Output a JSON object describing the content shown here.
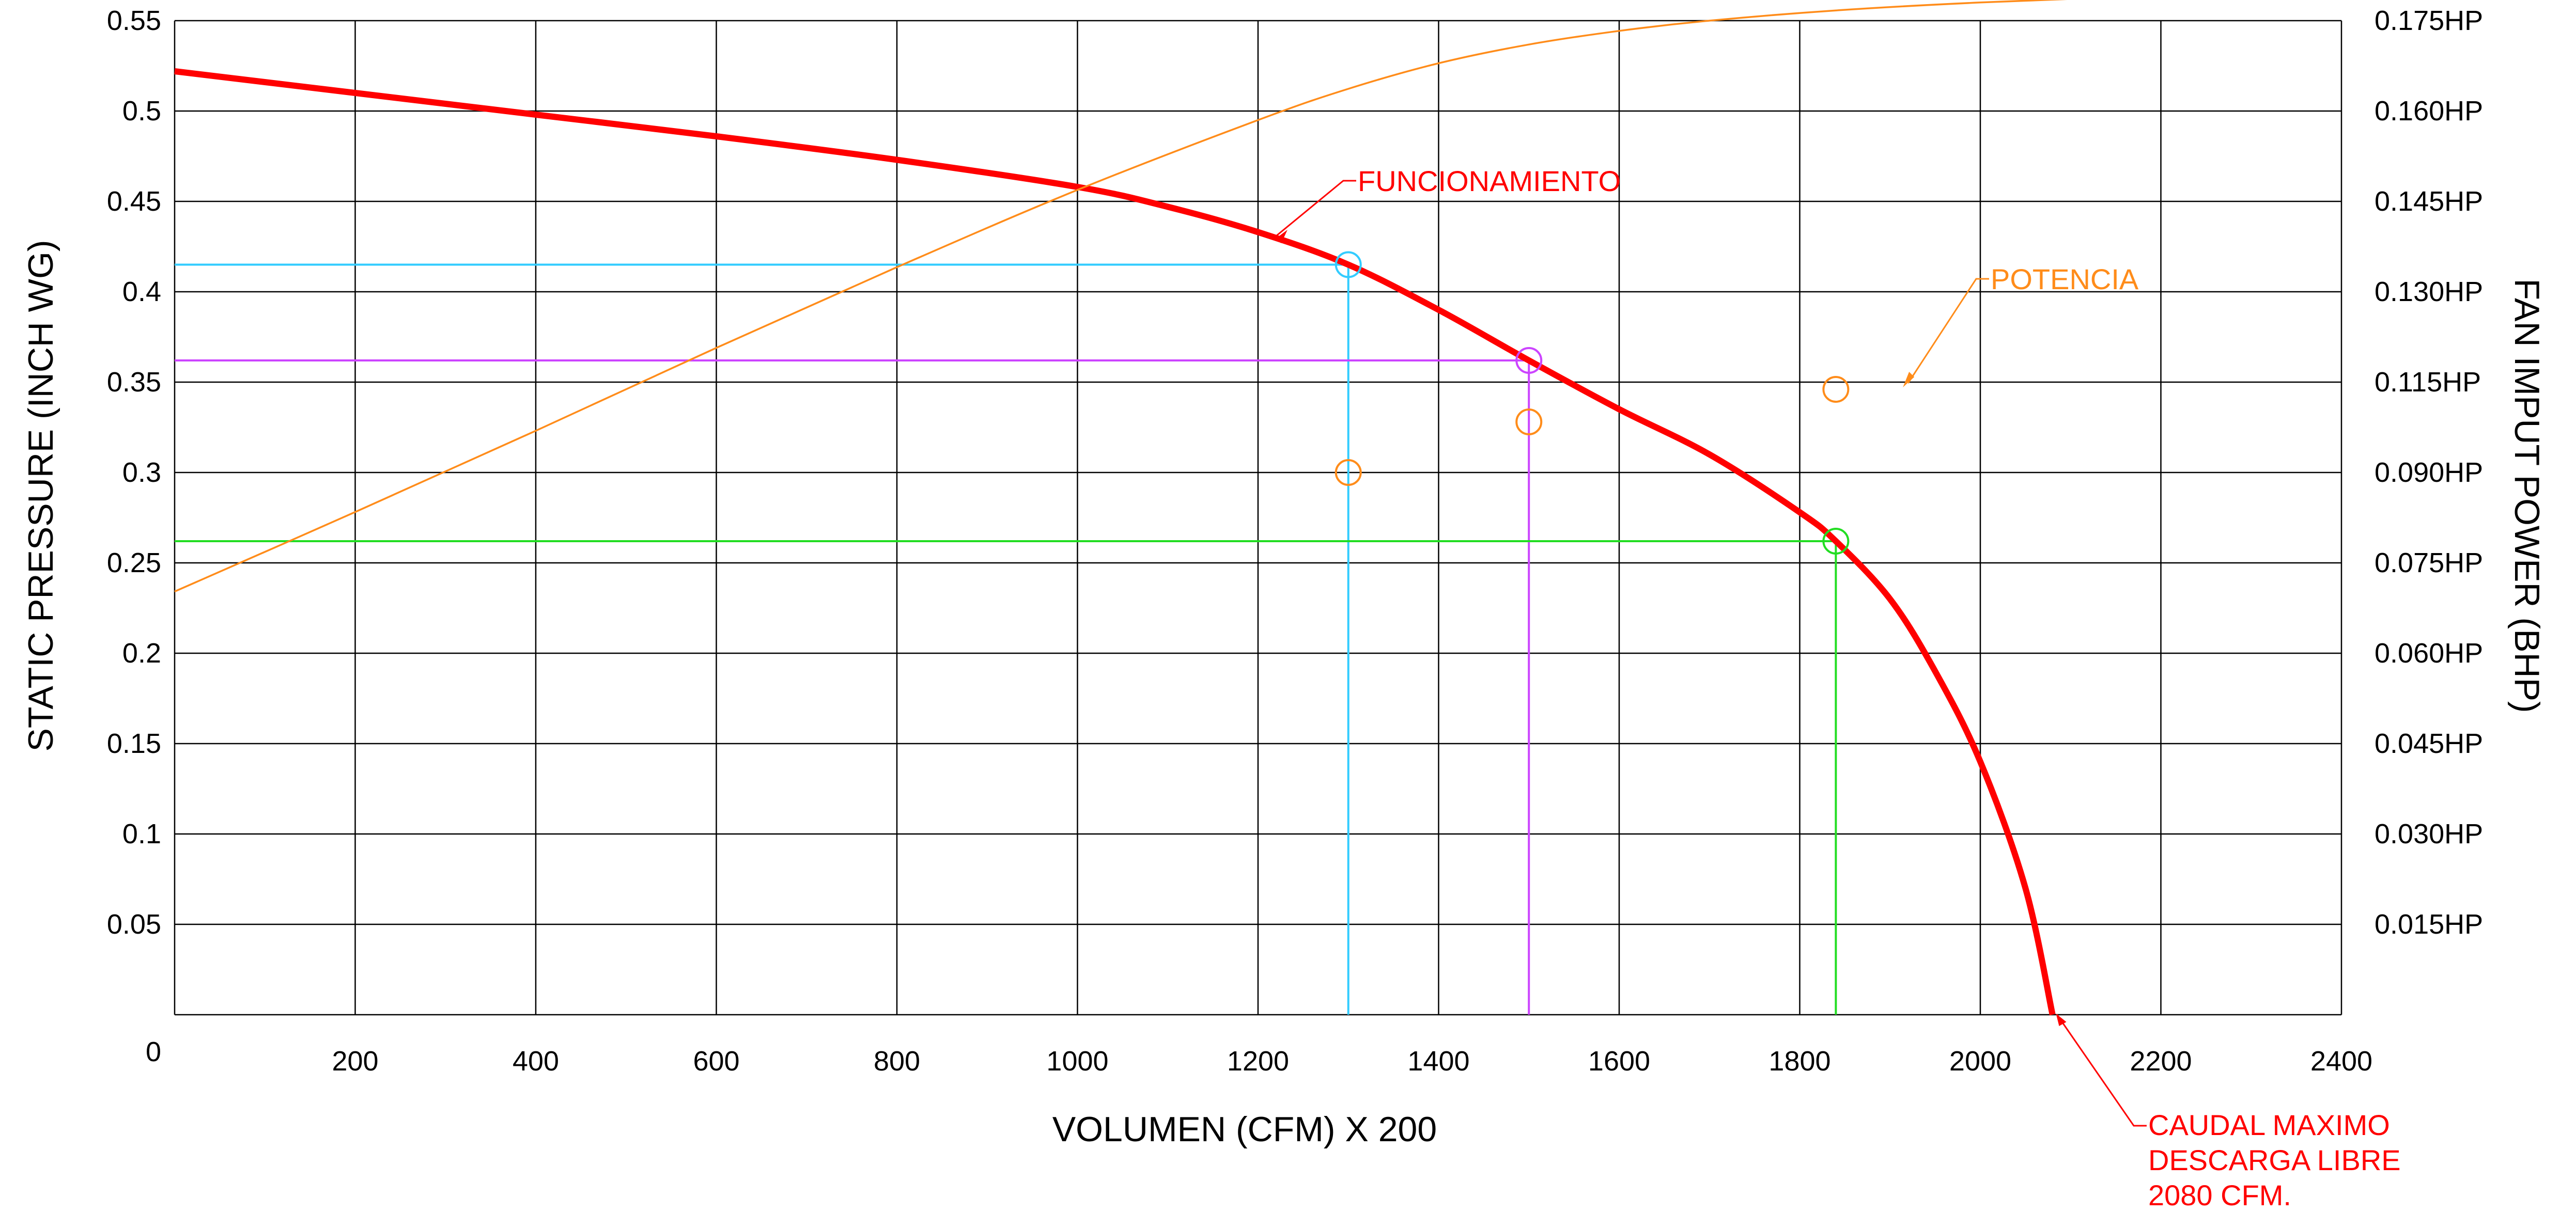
{
  "chart_data": {
    "type": "line",
    "title": "",
    "xlabel": "VOLUMEN (CFM) X 200",
    "ylabel": "STATIC PRESSURE (INCH WG)",
    "y2label": "FAN IMPUT POWER (BHP)",
    "xlim": [
      0,
      2400
    ],
    "ylim": [
      0,
      0.55
    ],
    "y2lim": [
      0,
      0.175
    ],
    "grid": true,
    "x_ticks": [
      200,
      400,
      600,
      800,
      1000,
      1200,
      1400,
      1600,
      1800,
      2000,
      2200,
      2400
    ],
    "x_tick_labels": [
      "200",
      "400",
      "600",
      "800",
      "1000",
      "1200",
      "1400",
      "1600",
      "1800",
      "2000",
      "2200",
      "2400"
    ],
    "y_ticks": [
      0,
      0.05,
      0.1,
      0.15,
      0.2,
      0.25,
      0.3,
      0.35,
      0.4,
      0.45,
      0.5,
      0.55
    ],
    "y_tick_labels": [
      "0",
      "0.05",
      "0.1",
      "0.15",
      "0.2",
      "0.25",
      "0.3",
      "0.35",
      "0.4",
      "0.45",
      "0.5",
      "0.55"
    ],
    "y2_ticks": [
      0.015,
      0.03,
      0.045,
      0.06,
      0.075,
      0.09,
      0.115,
      0.13,
      0.145,
      0.16,
      0.175
    ],
    "y2_tick_labels": [
      "0.015HP",
      "0.030HP",
      "0.045HP",
      "0.060HP",
      "0.075HP",
      "0.090HP",
      "0.115HP",
      "0.130HP",
      "0.145HP",
      "0.160HP",
      "0.175HP"
    ],
    "series": [
      {
        "name": "FUNCIONAMIENTO",
        "axis": "left",
        "color": "#ff0000",
        "x": [
          0,
          200,
          400,
          600,
          800,
          1000,
          1100,
          1200,
          1300,
          1400,
          1500,
          1600,
          1700,
          1800,
          1840,
          1900,
          1950,
          2000,
          2050,
          2080
        ],
        "y": [
          0.522,
          0.51,
          0.498,
          0.486,
          0.473,
          0.458,
          0.447,
          0.433,
          0.415,
          0.39,
          0.362,
          0.335,
          0.31,
          0.278,
          0.262,
          0.23,
          0.19,
          0.14,
          0.07,
          0
        ]
      },
      {
        "name": "POTENCIA",
        "axis": "right",
        "color": "#ff8c1a",
        "x": [
          0,
          200,
          400,
          600,
          800,
          1000,
          1200,
          1300,
          1400,
          1500,
          1600,
          1700,
          1840,
          2000,
          2200,
          2400
        ],
        "y": [
          0.0745,
          0.0885,
          0.1028,
          0.1174,
          0.1316,
          0.1452,
          0.1575,
          0.163,
          0.1675,
          0.1708,
          0.1732,
          0.175,
          0.1768,
          0.1782,
          0.1794,
          0.1805
        ]
      }
    ],
    "reference_points": [
      {
        "x": 1300,
        "y": 0.415,
        "color": "#33ccff"
      },
      {
        "x": 1500,
        "y": 0.362,
        "color": "#cc44ff"
      },
      {
        "x": 1840,
        "y": 0.262,
        "color": "#22dd22"
      }
    ],
    "power_markers": [
      {
        "x": 1300,
        "y": 0.3
      },
      {
        "x": 1500,
        "y": 0.328
      },
      {
        "x": 1840,
        "y": 0.346
      }
    ],
    "annotations": [
      {
        "text": "FUNCIONAMIENTO",
        "color": "#ff0000",
        "target_x": 1220,
        "target_y": 0.432
      },
      {
        "text": "POTENCIA",
        "color": "#ff8c1a",
        "target_x": 1920,
        "target_y": 0.348
      },
      {
        "lines": [
          "CAUDAL MAXIMO",
          "DESCARGA LIBRE",
          "2080 CFM."
        ],
        "color": "#ff0000",
        "target_x": 2085,
        "target_y": 0
      }
    ]
  }
}
